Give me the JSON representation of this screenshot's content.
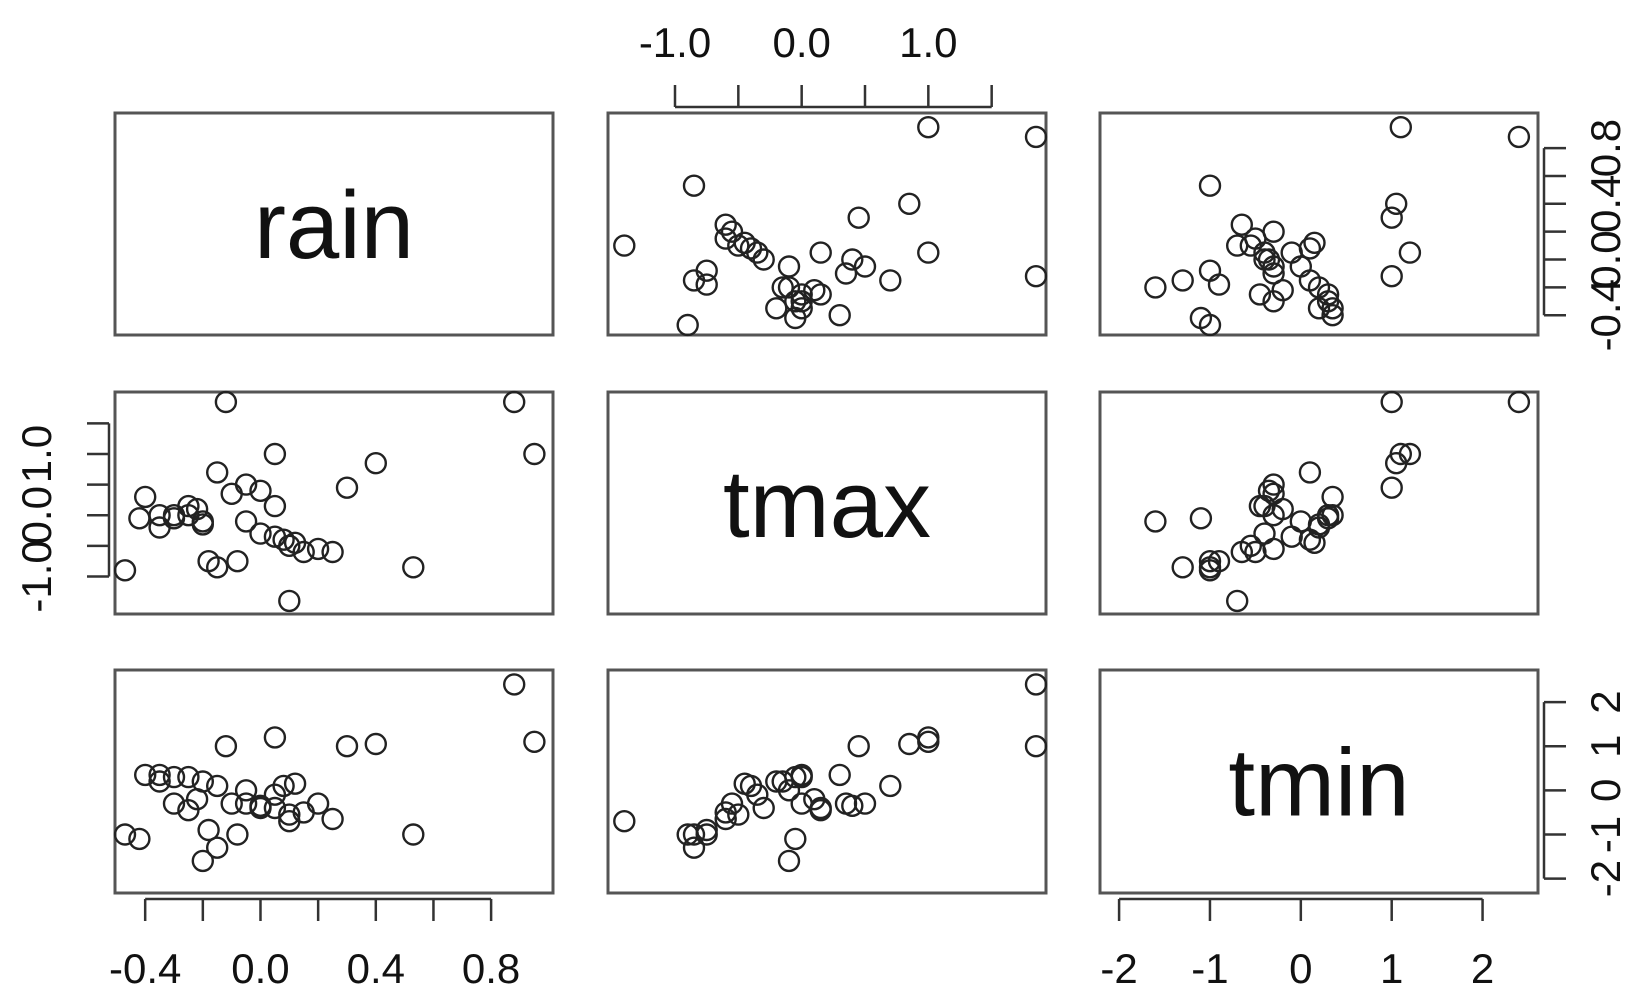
{
  "chart_data": {
    "type": "scatter",
    "title": "",
    "variables": [
      "rain",
      "tmax",
      "tmin"
    ],
    "variable_ranges": {
      "rain": [
        -0.47,
        0.98
      ],
      "tmax": [
        -1.45,
        1.85
      ],
      "tmin": [
        -2.1,
        2.5
      ]
    },
    "axis_ticks": {
      "rain": {
        "values": [
          -0.4,
          -0.2,
          0.0,
          0.2,
          0.4,
          0.6,
          0.8
        ],
        "labels": [
          "-0.4",
          "",
          "0.0",
          "",
          "0.4",
          "",
          "0.8"
        ]
      },
      "tmax": {
        "values": [
          -1.0,
          -0.5,
          0.0,
          0.5,
          1.0,
          1.5
        ],
        "labels": [
          "-1.0",
          "",
          "0.0",
          "",
          "1.0",
          ""
        ]
      },
      "tmin": {
        "values": [
          -2,
          -1,
          0,
          1,
          2
        ],
        "labels": [
          "-2",
          "-1",
          "0",
          "1",
          "2"
        ]
      }
    },
    "grid": false,
    "legend": "none",
    "points": [
      {
        "rain": -0.47,
        "tmax": -0.9,
        "tmin": -1.0
      },
      {
        "rain": 0.53,
        "tmax": -0.85,
        "tmin": -1.0
      },
      {
        "rain": -0.42,
        "tmax": -0.05,
        "tmin": -1.1
      },
      {
        "rain": 0.1,
        "tmax": -1.4,
        "tmin": -0.7
      },
      {
        "rain": -0.4,
        "tmax": 0.3,
        "tmin": 0.35
      },
      {
        "rain": -0.35,
        "tmax": 0.0,
        "tmin": 0.35
      },
      {
        "rain": -0.3,
        "tmax": -0.05,
        "tmin": 0.3
      },
      {
        "rain": -0.25,
        "tmax": 0.0,
        "tmin": 0.3
      },
      {
        "rain": -0.2,
        "tmax": -0.15,
        "tmin": 0.2
      },
      {
        "rain": -0.15,
        "tmax": 0.7,
        "tmin": 0.1
      },
      {
        "rain": -0.1,
        "tmax": 0.35,
        "tmin": -0.3
      },
      {
        "rain": -0.05,
        "tmax": 0.5,
        "tmin": -0.3
      },
      {
        "rain": 0.0,
        "tmax": 0.4,
        "tmin": -0.35
      },
      {
        "rain": 0.05,
        "tmax": 0.15,
        "tmin": -0.4
      },
      {
        "rain": -0.22,
        "tmax": 0.1,
        "tmin": -0.2
      },
      {
        "rain": -0.05,
        "tmax": -0.1,
        "tmin": 0.0
      },
      {
        "rain": 0.0,
        "tmax": -0.3,
        "tmin": -0.4
      },
      {
        "rain": 0.05,
        "tmax": -0.35,
        "tmin": -0.1
      },
      {
        "rain": 0.1,
        "tmax": -0.5,
        "tmin": -0.55
      },
      {
        "rain": 0.15,
        "tmax": -0.6,
        "tmin": -0.5
      },
      {
        "rain": 0.2,
        "tmax": -0.55,
        "tmin": -0.3
      },
      {
        "rain": 0.25,
        "tmax": -0.6,
        "tmin": -0.65
      },
      {
        "rain": -0.18,
        "tmax": -0.75,
        "tmin": -0.9
      },
      {
        "rain": -0.15,
        "tmax": -0.85,
        "tmin": -1.3
      },
      {
        "rain": -0.08,
        "tmax": -0.75,
        "tmin": -1.0
      },
      {
        "rain": 0.3,
        "tmax": 0.45,
        "tmin": 1.0
      },
      {
        "rain": 0.4,
        "tmax": 0.85,
        "tmin": 1.05
      },
      {
        "rain": -0.12,
        "tmax": 1.85,
        "tmin": 1.0
      },
      {
        "rain": 0.05,
        "tmax": 1.0,
        "tmin": 1.2
      },
      {
        "rain": 0.88,
        "tmax": 1.85,
        "tmin": 2.4
      },
      {
        "rain": 0.95,
        "tmax": 1.0,
        "tmin": 1.1
      },
      {
        "rain": -0.2,
        "tmax": -0.1,
        "tmin": -1.6
      },
      {
        "rain": -0.25,
        "tmax": 0.15,
        "tmin": -0.45
      },
      {
        "rain": -0.3,
        "tmax": 0.0,
        "tmin": -0.3
      },
      {
        "rain": 0.08,
        "tmax": -0.4,
        "tmin": 0.1
      },
      {
        "rain": -0.35,
        "tmax": -0.2,
        "tmin": 0.2
      },
      {
        "rain": 0.12,
        "tmax": -0.45,
        "tmin": 0.15
      }
    ]
  }
}
